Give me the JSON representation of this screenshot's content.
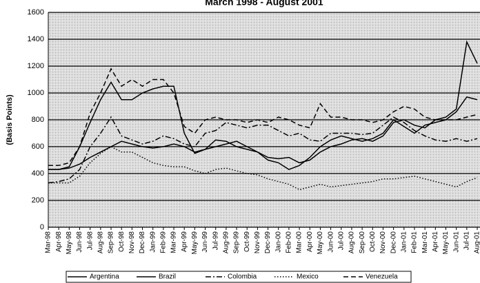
{
  "chart_data": {
    "type": "line",
    "title": "March 1998 - August 2001",
    "y_label": "(Basis Points)",
    "categories": [
      "Mar-98",
      "Apr-98",
      "May-98",
      "Jun-98",
      "Jul-98",
      "Aug-98",
      "Sep-98",
      "Oct-98",
      "Nov-98",
      "Dec-98",
      "Jan-99",
      "Feb-99",
      "Mar-99",
      "Apr-99",
      "May-99",
      "Jun-99",
      "Jul-99",
      "Aug-99",
      "Sep-99",
      "Oct-99",
      "Nov-99",
      "Dec-99",
      "Jan-00",
      "Feb-00",
      "Mar-00",
      "Apr-00",
      "May-00",
      "Jun-00",
      "Jul-00",
      "Aug-00",
      "Sep-00",
      "Oct-00",
      "Nov-00",
      "Dec-00",
      "Jan-01",
      "Feb-01",
      "Mar-01",
      "Apr-01",
      "May-01",
      "Jun-01",
      "Jul-01",
      "Aug-01"
    ],
    "series": [
      {
        "name": "Argentina",
        "color": "#000000",
        "dash": "solid",
        "values": [
          430,
          430,
          440,
          470,
          520,
          560,
          600,
          640,
          620,
          600,
          590,
          600,
          620,
          600,
          560,
          580,
          600,
          620,
          640,
          600,
          560,
          520,
          510,
          520,
          480,
          500,
          560,
          600,
          620,
          650,
          660,
          640,
          680,
          780,
          800,
          760,
          740,
          800,
          820,
          880,
          1380,
          1220
        ]
      },
      {
        "name": "Brazil",
        "color": "#000000",
        "dash": "solid",
        "values": [
          430,
          430,
          450,
          600,
          780,
          950,
          1080,
          950,
          950,
          1000,
          1030,
          1050,
          1050,
          700,
          550,
          580,
          650,
          640,
          600,
          580,
          560,
          500,
          480,
          430,
          460,
          520,
          600,
          650,
          680,
          660,
          640,
          660,
          700,
          800,
          750,
          700,
          760,
          780,
          800,
          860,
          970,
          950
        ]
      },
      {
        "name": "Colombia",
        "color": "#000000",
        "dash": "dashdot",
        "values": [
          330,
          340,
          360,
          430,
          600,
          700,
          820,
          680,
          650,
          620,
          640,
          680,
          660,
          620,
          600,
          700,
          720,
          780,
          760,
          740,
          760,
          760,
          720,
          680,
          700,
          650,
          640,
          700,
          700,
          700,
          690,
          700,
          760,
          820,
          780,
          720,
          680,
          650,
          640,
          660,
          640,
          660
        ]
      },
      {
        "name": "Mexico",
        "color": "#000000",
        "dash": "dotted",
        "values": [
          330,
          330,
          330,
          380,
          480,
          550,
          600,
          560,
          560,
          520,
          480,
          460,
          450,
          450,
          420,
          400,
          430,
          440,
          420,
          400,
          390,
          360,
          340,
          320,
          280,
          300,
          320,
          300,
          310,
          320,
          330,
          340,
          360,
          360,
          370,
          380,
          360,
          340,
          320,
          300,
          340,
          370
        ]
      },
      {
        "name": "Venezuela",
        "color": "#000000",
        "dash": "dashed",
        "values": [
          460,
          460,
          480,
          600,
          850,
          1000,
          1180,
          1050,
          1100,
          1050,
          1100,
          1100,
          1000,
          750,
          700,
          800,
          820,
          800,
          800,
          780,
          800,
          780,
          820,
          800,
          760,
          740,
          920,
          820,
          820,
          800,
          800,
          780,
          800,
          860,
          900,
          880,
          820,
          800,
          800,
          800,
          820,
          840
        ]
      }
    ],
    "ylim": [
      0,
      1600
    ],
    "yticks": [
      0,
      200,
      400,
      600,
      800,
      1000,
      1200,
      1400,
      1600
    ],
    "grid": true
  }
}
